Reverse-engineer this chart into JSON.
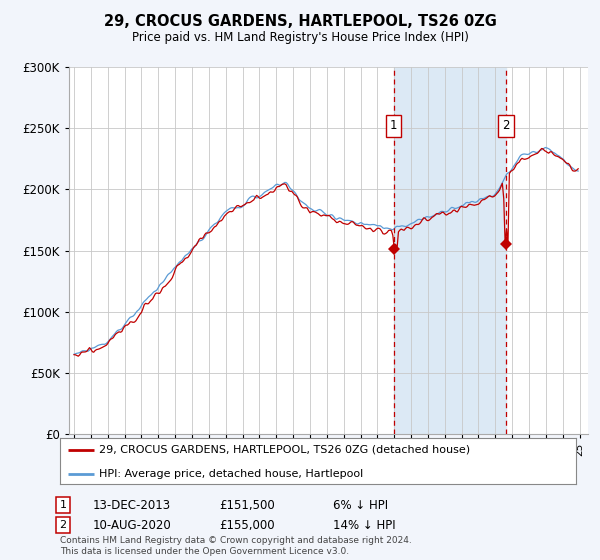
{
  "title": "29, CROCUS GARDENS, HARTLEPOOL, TS26 0ZG",
  "subtitle": "Price paid vs. HM Land Registry's House Price Index (HPI)",
  "legend_line1": "29, CROCUS GARDENS, HARTLEPOOL, TS26 0ZG (detached house)",
  "legend_line2": "HPI: Average price, detached house, Hartlepool",
  "sale1_date": "13-DEC-2013",
  "sale1_price": "£151,500",
  "sale1_hpi": "6% ↓ HPI",
  "sale1_year": 2013.96,
  "sale1_value": 151500,
  "sale2_date": "10-AUG-2020",
  "sale2_price": "£155,000",
  "sale2_hpi": "14% ↓ HPI",
  "sale2_year": 2020.62,
  "sale2_value": 155000,
  "footnote": "Contains HM Land Registry data © Crown copyright and database right 2024.\nThis data is licensed under the Open Government Licence v3.0.",
  "hpi_color": "#5b9bd5",
  "price_color": "#c00000",
  "marker_color": "#c00000",
  "fill_between_color": "#dce9f5",
  "background_color": "#f2f5fb",
  "plot_bg_color": "#ffffff",
  "grid_color": "#c8c8c8",
  "ylim": [
    0,
    300000
  ],
  "yticks": [
    0,
    50000,
    100000,
    150000,
    200000,
    250000,
    300000
  ],
  "xlim_start": 1994.7,
  "xlim_end": 2025.5
}
